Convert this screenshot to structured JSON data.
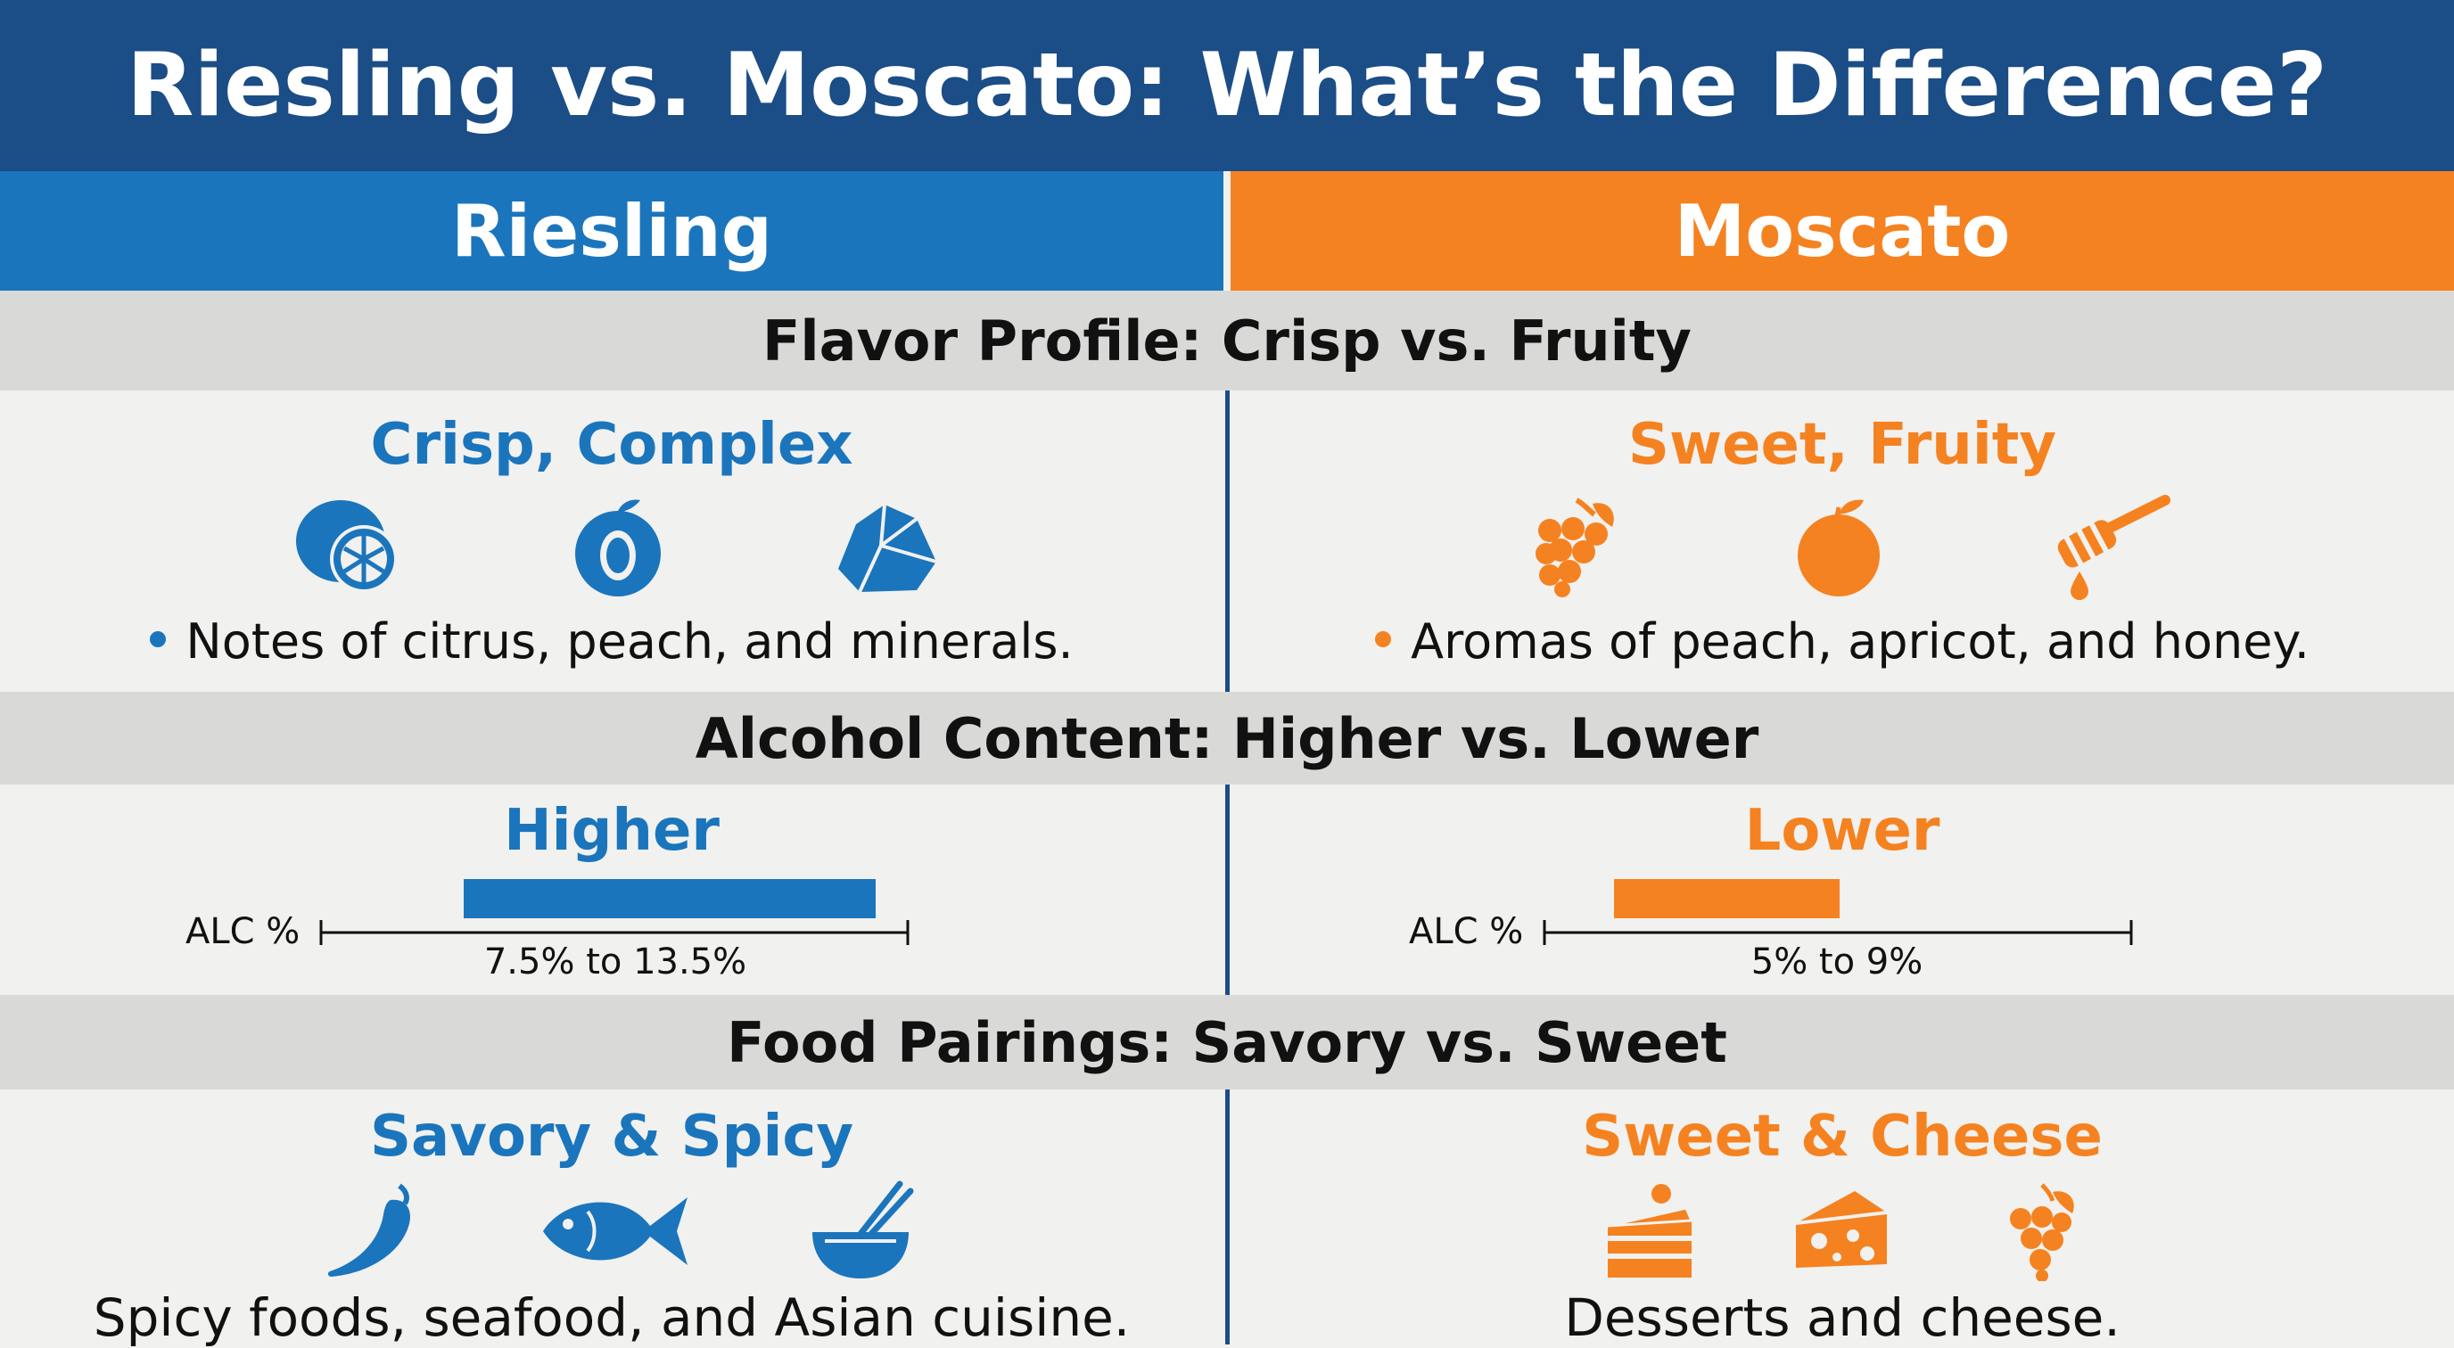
{
  "title": "Riesling vs. Moscato: What’s the Difference?",
  "columns": {
    "left": "Riesling",
    "right": "Moscato"
  },
  "sections": {
    "flavor": {
      "heading": "Flavor Profile: Crisp vs. Fruity",
      "left": {
        "subhead": "Crisp, Complex",
        "icons": [
          "citrus-icon",
          "peach-icon",
          "mineral-rock-icon"
        ],
        "note": "Notes of citrus, peach, and minerals."
      },
      "right": {
        "subhead": "Sweet, Fruity",
        "icons": [
          "grapes-icon",
          "apricot-icon",
          "honey-dipper-icon"
        ],
        "note": "Aromas of peach, apricot, and honey."
      }
    },
    "alcohol": {
      "heading": "Alcohol Content: Higher vs. Lower",
      "left": {
        "subhead": "Higher",
        "axis_label": "ALC %",
        "range": "7.5% to 13.5%"
      },
      "right": {
        "subhead": "Lower",
        "axis_label": "ALC %",
        "range": "5% to 9%"
      }
    },
    "food": {
      "heading": "Food Pairings: Savory vs. Sweet",
      "left": {
        "subhead": "Savory & Spicy",
        "icons": [
          "chili-pepper-icon",
          "fish-icon",
          "noodle-bowl-icon"
        ],
        "note": "Spicy foods, seafood, and Asian cuisine."
      },
      "right": {
        "subhead": "Sweet & Cheese",
        "icons": [
          "cake-slice-icon",
          "cheese-icon",
          "grapes-icon"
        ],
        "note": "Desserts and cheese."
      }
    }
  },
  "colors": {
    "title_bar": "#1b4d86",
    "riesling": "#1b75bc",
    "moscato": "#f58220",
    "band": "#d9d9d7",
    "background": "#f1f1ef"
  }
}
